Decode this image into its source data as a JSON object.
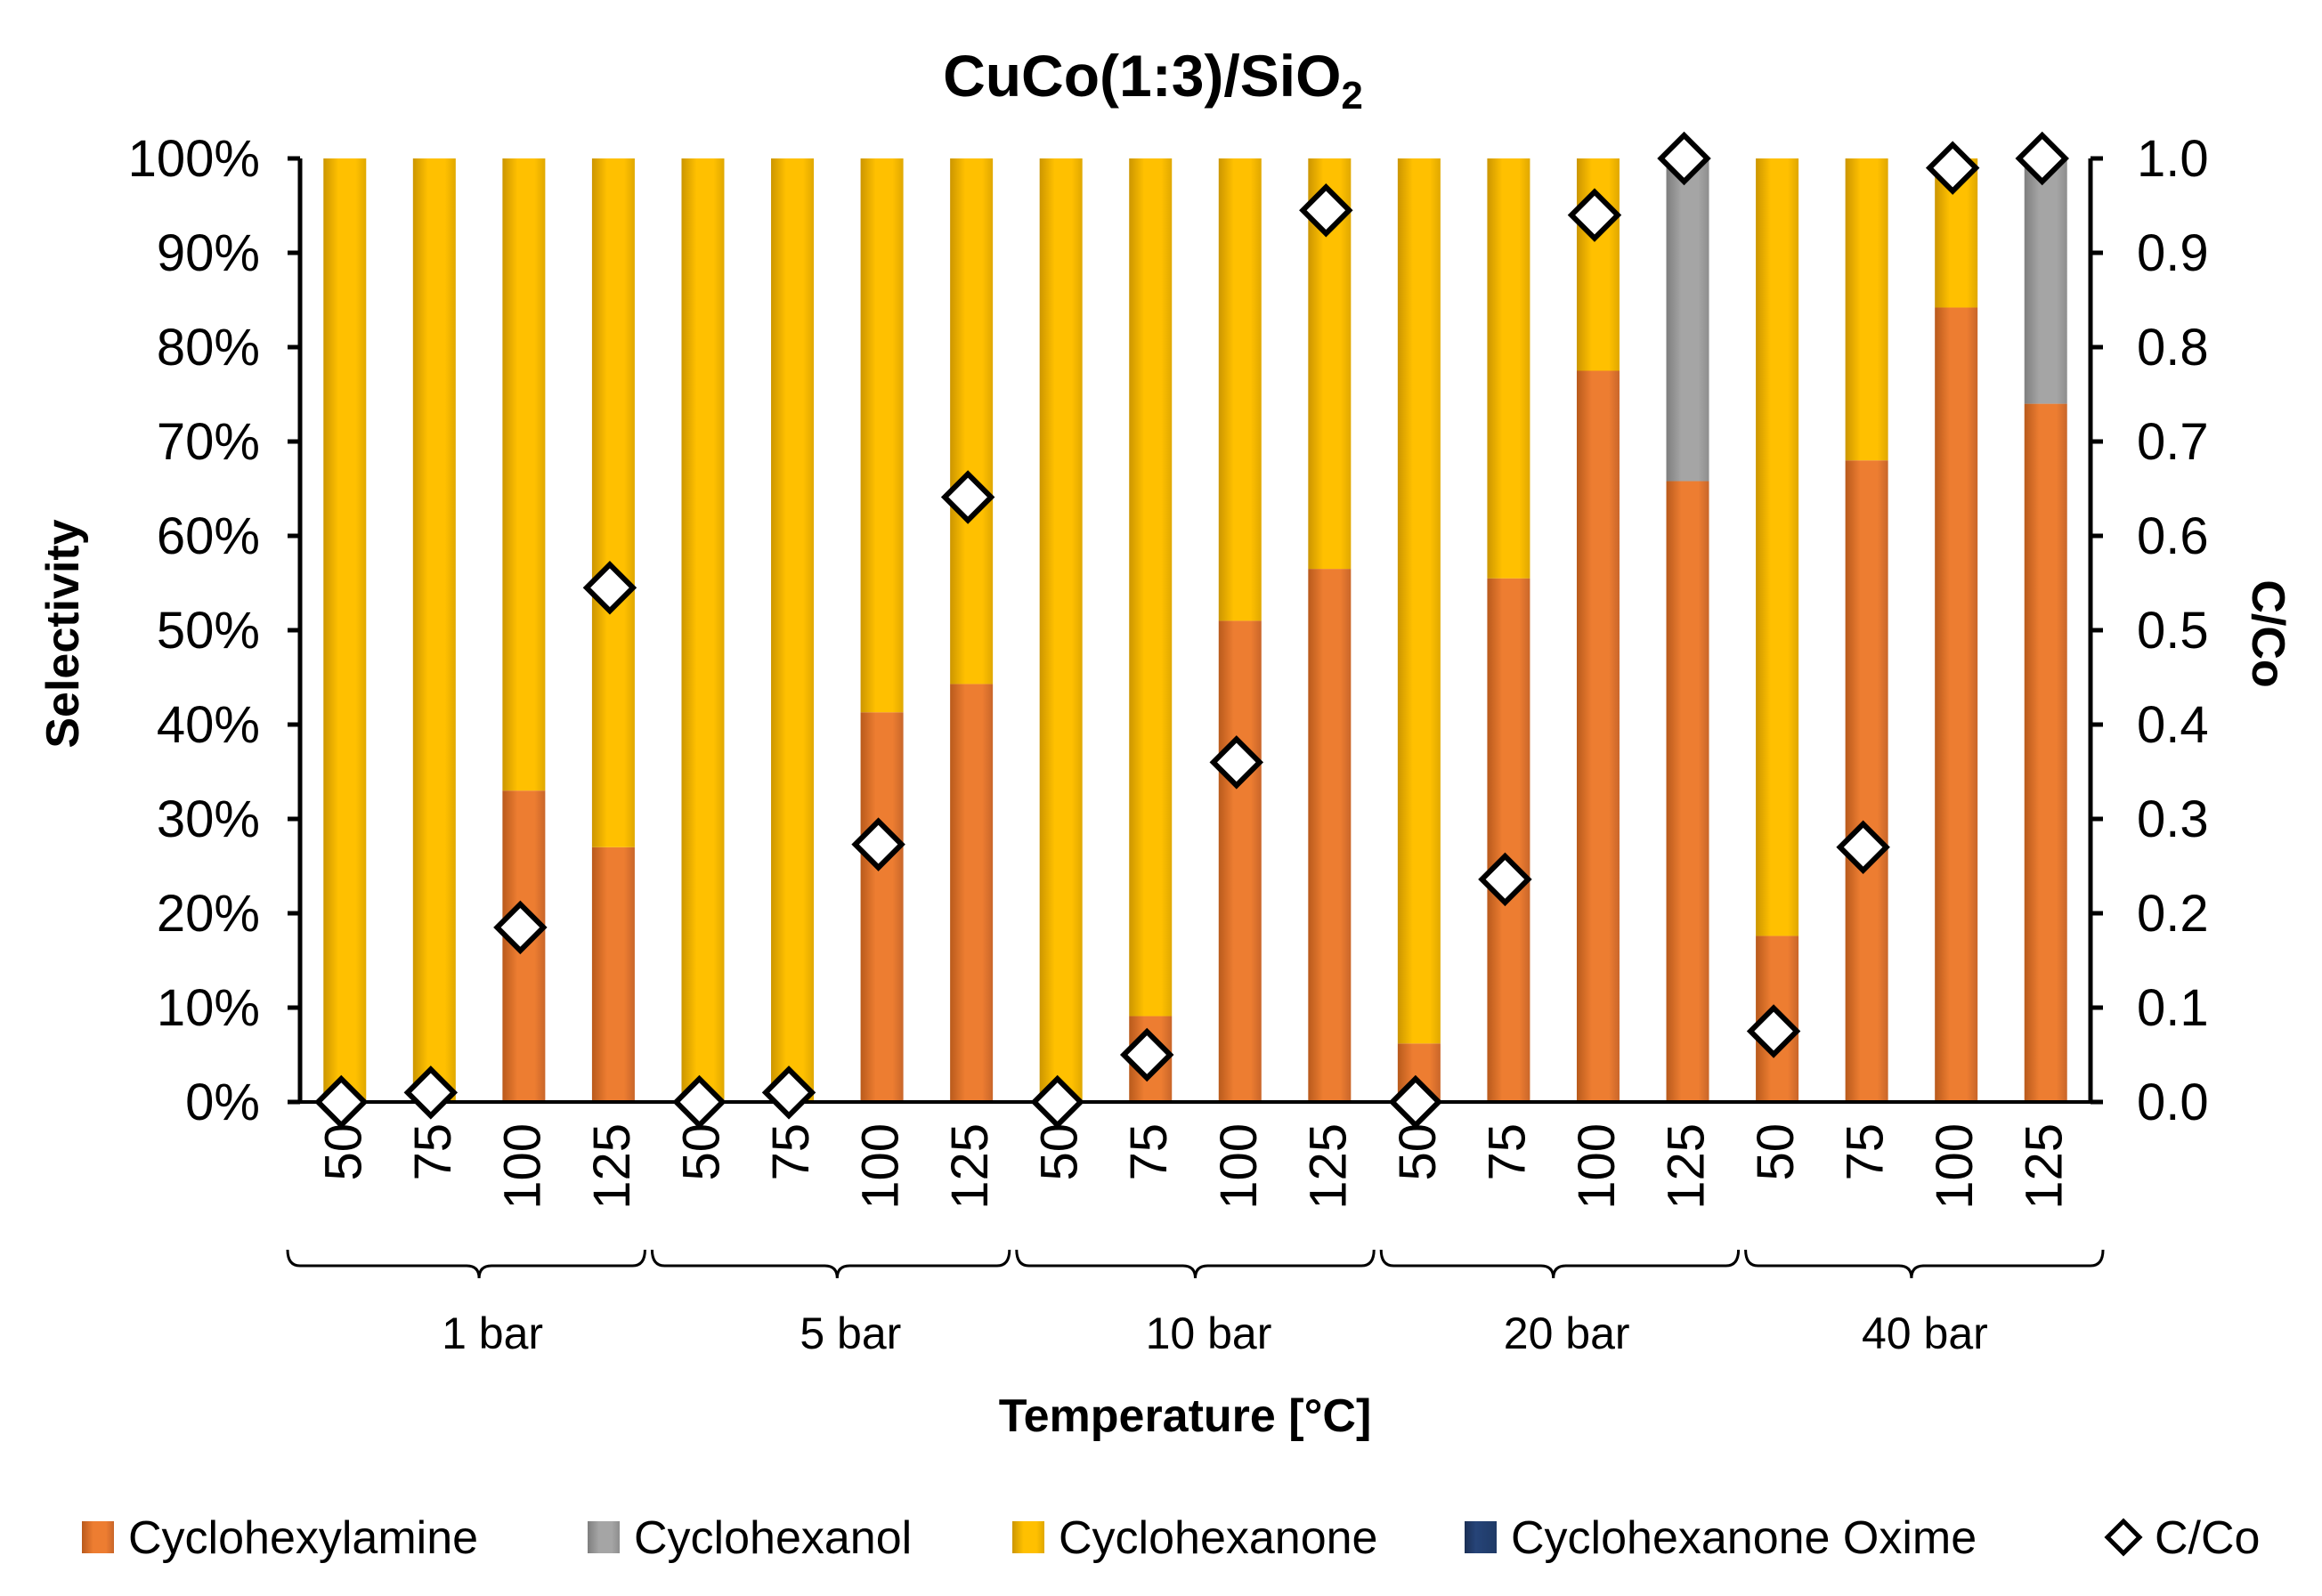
{
  "chart_data": {
    "type": "bar",
    "stacked": true,
    "title": "CuCo(1:3)/SiO",
    "title_subscript": "2",
    "xlabel": "Temperature [°C]",
    "ylabel": "Selectivity",
    "y2label": "C/Co",
    "ylim": [
      0,
      100
    ],
    "y2lim": [
      0,
      1.0
    ],
    "yticks": [
      "0%",
      "10%",
      "20%",
      "30%",
      "40%",
      "50%",
      "60%",
      "70%",
      "80%",
      "90%",
      "100%"
    ],
    "y2ticks": [
      "0.0",
      "0.1",
      "0.2",
      "0.3",
      "0.4",
      "0.5",
      "0.6",
      "0.7",
      "0.8",
      "0.9",
      "1.0"
    ],
    "groups": [
      {
        "label": "1 bar",
        "categories": [
          "50",
          "75",
          "100",
          "125"
        ]
      },
      {
        "label": "5 bar",
        "categories": [
          "50",
          "75",
          "100",
          "125"
        ]
      },
      {
        "label": "10 bar",
        "categories": [
          "50",
          "75",
          "100",
          "125"
        ]
      },
      {
        "label": "20 bar",
        "categories": [
          "50",
          "75",
          "100",
          "125"
        ]
      },
      {
        "label": "40 bar",
        "categories": [
          "50",
          "75",
          "100",
          "125"
        ]
      }
    ],
    "series": [
      {
        "name": "Cyclohexylamine",
        "color": "#ed7d31",
        "values": [
          0,
          0,
          33,
          27,
          0,
          0,
          41.3,
          44.3,
          0,
          9.1,
          51,
          56.5,
          6.2,
          55.5,
          77.5,
          65.8,
          17.6,
          68,
          84.2,
          74
        ]
      },
      {
        "name": "Cyclohexanol",
        "color": "#a5a5a5",
        "values": [
          0,
          0,
          0,
          0,
          0,
          0,
          0,
          0,
          0,
          0,
          0,
          0,
          0,
          0,
          0,
          34.2,
          0,
          0,
          0,
          26
        ]
      },
      {
        "name": "Cyclohexanone",
        "color": "#ffc000",
        "values": [
          100,
          100,
          67,
          73,
          100,
          100,
          58.7,
          55.7,
          100,
          90.9,
          49,
          43.5,
          93.8,
          44.5,
          22.5,
          0,
          82.4,
          32,
          15.8,
          0
        ]
      },
      {
        "name": "Cyclohexanone Oxime",
        "color": "#264478",
        "values": [
          0,
          0,
          0,
          0,
          0,
          0,
          0,
          0,
          0,
          0,
          0,
          0,
          0,
          0,
          0,
          0,
          0,
          0,
          0,
          0
        ]
      }
    ],
    "secondary_series": {
      "name": "C/Co",
      "marker": "diamond",
      "values": [
        0.0,
        0.01,
        0.185,
        0.545,
        0.0,
        0.01,
        0.273,
        0.641,
        0.0,
        0.05,
        0.36,
        0.945,
        0.0,
        0.236,
        0.94,
        1.0,
        0.075,
        0.27,
        0.99,
        1.0
      ]
    },
    "legend": [
      "Cyclohexylamine",
      "Cyclohexanol",
      "Cyclohexanone",
      "Cyclohexanone Oxime",
      "C/Co"
    ],
    "legend_position": "bottom"
  }
}
